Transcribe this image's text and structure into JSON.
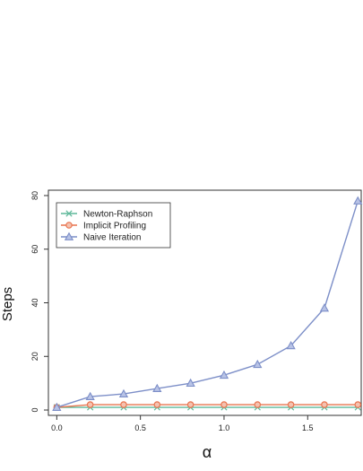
{
  "chart_data": {
    "type": "line",
    "title": "",
    "xlabel": "α",
    "ylabel": "Steps",
    "xlim": [
      -0.05,
      1.82
    ],
    "ylim": [
      -2,
      82
    ],
    "x_ticks": [
      0.0,
      0.5,
      1.0,
      1.5
    ],
    "x_tick_labels": [
      "0.0",
      "0.5",
      "1.0",
      "1.5"
    ],
    "y_ticks": [
      0,
      20,
      40,
      60,
      80
    ],
    "y_tick_labels": [
      "0",
      "20",
      "40",
      "60",
      "80"
    ],
    "grid": false,
    "legend_position": "top-left",
    "x": [
      0.0,
      0.2,
      0.4,
      0.6,
      0.8,
      1.0,
      1.2,
      1.4,
      1.6,
      1.8
    ],
    "series": [
      {
        "name": "Newton-Raphson",
        "marker": "x",
        "color": "#5fb99a",
        "values": [
          1,
          1,
          1,
          1,
          1,
          1,
          1,
          1,
          1,
          1
        ]
      },
      {
        "name": "Implicit Profiling",
        "marker": "circle",
        "color": "#e8744f",
        "values": [
          1,
          2,
          2,
          2,
          2,
          2,
          2,
          2,
          2,
          2
        ]
      },
      {
        "name": "Naive Iteration",
        "marker": "triangle",
        "color": "#7d8fc8",
        "values": [
          1,
          5,
          6,
          8,
          10,
          13,
          17,
          24,
          38,
          78
        ]
      }
    ]
  }
}
